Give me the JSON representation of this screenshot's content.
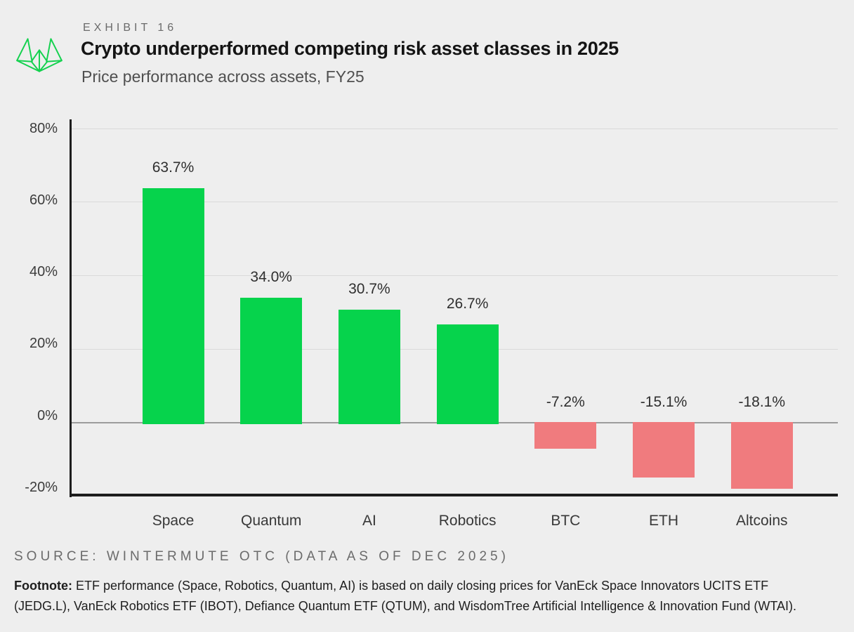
{
  "header": {
    "exhibit_label": "EXHIBIT 16",
    "title": "Crypto underperformed competing risk asset classes in 2025",
    "subtitle": "Price performance across assets, FY25"
  },
  "logo": {
    "icon": "wintermute-fox-logo",
    "color": "#13D14E"
  },
  "chart_data": {
    "type": "bar",
    "title": "Crypto underperformed competing risk asset classes in 2025",
    "subtitle": "Price performance across assets, FY25",
    "categories": [
      "Space",
      "Quantum",
      "AI",
      "Robotics",
      "BTC",
      "ETH",
      "Altcoins"
    ],
    "values": [
      63.7,
      34.0,
      30.7,
      26.7,
      -7.2,
      -15.1,
      -18.1
    ],
    "value_labels": [
      "63.7%",
      "34.0%",
      "30.7%",
      "26.7%",
      "-7.2%",
      "-15.1%",
      "-18.1%"
    ],
    "xlabel": "",
    "ylabel": "",
    "ylim": [
      -20,
      80
    ],
    "yticks": [
      80,
      60,
      40,
      20,
      0,
      -20
    ],
    "ytick_labels": [
      "80%",
      "60%",
      "40%",
      "20%",
      "0%",
      "-20%"
    ],
    "grid": "horizontal",
    "legend": "none",
    "positive_color": "#06D34C",
    "negative_color": "#F07B7E",
    "background_color": "#EEEEEE"
  },
  "footer": {
    "source": "SOURCE: WINTERMUTE OTC (DATA AS OF DEC 2025)",
    "footnote_label": "Footnote:",
    "footnote_text": " ETF performance (Space, Robotics, Quantum, AI) is based on daily closing prices for VanEck Space Innovators UCITS ETF (JEDG.L), VanEck Robotics ETF (IBOT), Defiance Quantum ETF (QTUM), and WisdomTree Artificial Intelligence & Innovation Fund (WTAI)."
  }
}
